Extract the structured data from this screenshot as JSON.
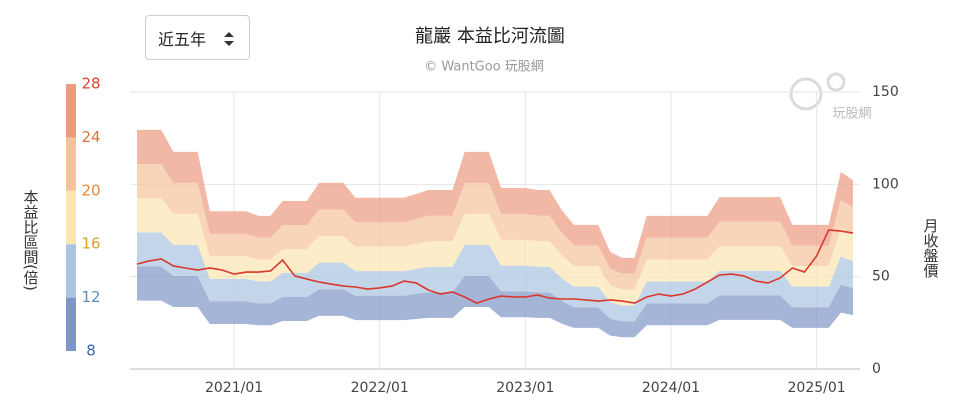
{
  "chart_data": {
    "type": "river",
    "title": "龍巖 本益比河流圖",
    "subtitle": "© WantGoo 玩股網",
    "range_selector": "近五年",
    "watermark": "玩股網",
    "y_axis_title": "月收盤價",
    "color_scale": {
      "title": "本益比區間(倍)",
      "ticks": [
        8,
        12,
        16,
        20,
        24,
        28
      ],
      "tick_colors": [
        "#3a64a8",
        "#5b8fc0",
        "#d9a030",
        "#e8893a",
        "#e0703a",
        "#d9443a"
      ]
    },
    "x": [
      "2020/05",
      "2020/06",
      "2020/07",
      "2020/08",
      "2020/09",
      "2020/10",
      "2020/11",
      "2020/12",
      "2021/01",
      "2021/02",
      "2021/03",
      "2021/04",
      "2021/05",
      "2021/06",
      "2021/07",
      "2021/08",
      "2021/09",
      "2021/10",
      "2021/11",
      "2021/12",
      "2022/01",
      "2022/02",
      "2022/03",
      "2022/04",
      "2022/05",
      "2022/06",
      "2022/07",
      "2022/08",
      "2022/09",
      "2022/10",
      "2022/11",
      "2022/12",
      "2023/01",
      "2023/02",
      "2023/03",
      "2023/04",
      "2023/05",
      "2023/06",
      "2023/07",
      "2023/08",
      "2023/09",
      "2023/10",
      "2023/11",
      "2023/12",
      "2024/01",
      "2024/02",
      "2024/03",
      "2024/04",
      "2024/05",
      "2024/06",
      "2024/07",
      "2024/08",
      "2024/09",
      "2024/10",
      "2024/11",
      "2024/12",
      "2025/01",
      "2025/02",
      "2025/03",
      "2025/04"
    ],
    "xticks": [
      "2021/01",
      "2022/01",
      "2023/01",
      "2024/01",
      "2025/01"
    ],
    "ylim": [
      0,
      150
    ],
    "yticks": [
      0,
      50,
      100,
      150
    ],
    "grid": true,
    "river": {
      "base": [
        37,
        37,
        37,
        33.6,
        33.6,
        33.6,
        24.4,
        24.4,
        24.4,
        24.4,
        23.7,
        23.7,
        26,
        26,
        26,
        28.8,
        28.8,
        28.8,
        26.5,
        26.5,
        26.5,
        26.5,
        26.5,
        27.1,
        27.7,
        27.7,
        27.7,
        33.6,
        33.6,
        33.6,
        28,
        28,
        28,
        27.7,
        27.7,
        24.6,
        22.3,
        22.3,
        22.3,
        18.1,
        17.2,
        17.2,
        23.7,
        23.7,
        23.7,
        23.7,
        23.7,
        23.7,
        26.6,
        26.6,
        26.6,
        26.6,
        26.6,
        26.6,
        22.3,
        22.3,
        22.3,
        22.3,
        30.5,
        29.2
      ],
      "bands": [
        {
          "color": "#7f95c8",
          "values": [
            18.5,
            18.5,
            18.5,
            16.8,
            16.8,
            16.8,
            12.2,
            12.2,
            12.2,
            12.2,
            11.85,
            11.85,
            13,
            13,
            13,
            14.4,
            14.4,
            14.4,
            13.25,
            13.25,
            13.25,
            13.25,
            13.25,
            13.55,
            13.85,
            13.85,
            13.85,
            16.8,
            16.8,
            16.8,
            14,
            14,
            14,
            13.85,
            13.85,
            12.3,
            11.15,
            11.15,
            11.15,
            9.05,
            8.6,
            8.6,
            11.85,
            11.85,
            11.85,
            11.85,
            11.85,
            11.85,
            13.3,
            13.3,
            13.3,
            13.3,
            13.3,
            13.3,
            11.15,
            11.15,
            11.15,
            11.15,
            15.25,
            14.6
          ]
        },
        {
          "color": "#a9c5e0",
          "values": [
            18.5,
            18.5,
            18.5,
            16.8,
            16.8,
            16.8,
            12.2,
            12.2,
            12.2,
            12.2,
            11.85,
            11.85,
            13,
            13,
            13,
            14.4,
            14.4,
            14.4,
            13.25,
            13.25,
            13.25,
            13.25,
            13.25,
            13.55,
            13.85,
            13.85,
            13.85,
            16.8,
            16.8,
            16.8,
            14,
            14,
            14,
            13.85,
            13.85,
            12.3,
            11.15,
            11.15,
            11.15,
            9.05,
            8.6,
            8.6,
            11.85,
            11.85,
            11.85,
            11.85,
            11.85,
            11.85,
            13.3,
            13.3,
            13.3,
            13.3,
            13.3,
            13.3,
            11.15,
            11.15,
            11.15,
            11.15,
            15.25,
            14.6
          ]
        },
        {
          "color": "#fbe6b0",
          "values": [
            18.5,
            18.5,
            18.5,
            16.8,
            16.8,
            16.8,
            12.2,
            12.2,
            12.2,
            12.2,
            11.85,
            11.85,
            13,
            13,
            13,
            14.4,
            14.4,
            14.4,
            13.25,
            13.25,
            13.25,
            13.25,
            13.25,
            13.55,
            13.85,
            13.85,
            13.85,
            16.8,
            16.8,
            16.8,
            14,
            14,
            14,
            13.85,
            13.85,
            12.3,
            11.15,
            11.15,
            11.15,
            9.05,
            8.6,
            8.6,
            11.85,
            11.85,
            11.85,
            11.85,
            11.85,
            11.85,
            13.3,
            13.3,
            13.3,
            13.3,
            13.3,
            13.3,
            11.15,
            11.15,
            11.15,
            11.15,
            15.25,
            14.6
          ]
        },
        {
          "color": "#f5c39a",
          "values": [
            18.5,
            18.5,
            18.5,
            16.8,
            16.8,
            16.8,
            12.2,
            12.2,
            12.2,
            12.2,
            11.85,
            11.85,
            13,
            13,
            13,
            14.4,
            14.4,
            14.4,
            13.25,
            13.25,
            13.25,
            13.25,
            13.25,
            13.55,
            13.85,
            13.85,
            13.85,
            16.8,
            16.8,
            16.8,
            14,
            14,
            14,
            13.85,
            13.85,
            12.3,
            11.15,
            11.15,
            11.15,
            9.05,
            8.6,
            8.6,
            11.85,
            11.85,
            11.85,
            11.85,
            11.85,
            11.85,
            13.3,
            13.3,
            13.3,
            13.3,
            13.3,
            13.3,
            11.15,
            11.15,
            11.15,
            11.15,
            15.25,
            14.6
          ]
        },
        {
          "color": "#ec9a80",
          "values": [
            18.5,
            18.5,
            18.5,
            16.8,
            16.8,
            16.8,
            12.2,
            12.2,
            12.2,
            12.2,
            11.85,
            11.85,
            13,
            13,
            13,
            14.4,
            14.4,
            14.4,
            13.25,
            13.25,
            13.25,
            13.25,
            13.25,
            13.55,
            13.85,
            13.85,
            13.85,
            16.8,
            16.8,
            16.8,
            14,
            14,
            14,
            13.85,
            13.85,
            12.3,
            11.15,
            11.15,
            11.15,
            9.05,
            8.6,
            8.6,
            11.85,
            11.85,
            11.85,
            11.85,
            11.85,
            11.85,
            13.3,
            13.3,
            13.3,
            13.3,
            13.3,
            13.3,
            11.15,
            11.15,
            11.15,
            11.15,
            15.25,
            14.6
          ]
        }
      ]
    },
    "price": {
      "color": "#d9382c",
      "values": [
        56.8,
        58.5,
        59.6,
        55.8,
        54.7,
        53.6,
        54.7,
        53.6,
        51.4,
        52.5,
        52.5,
        53.1,
        59,
        50.4,
        48.7,
        47.1,
        46,
        44.9,
        44.4,
        43.3,
        43.9,
        44.9,
        47.6,
        46.6,
        42.8,
        40.6,
        41.7,
        39,
        35.7,
        37.9,
        39.5,
        39,
        39,
        40.1,
        38.4,
        37.9,
        37.9,
        37.4,
        36.8,
        37.4,
        36.8,
        35.7,
        39,
        40.6,
        39.5,
        40.6,
        43.3,
        47.1,
        50.9,
        51.4,
        50.4,
        47.6,
        46.6,
        49.3,
        54.7,
        52.5,
        61.2,
        75.3,
        74.7,
        73.6
      ]
    }
  }
}
